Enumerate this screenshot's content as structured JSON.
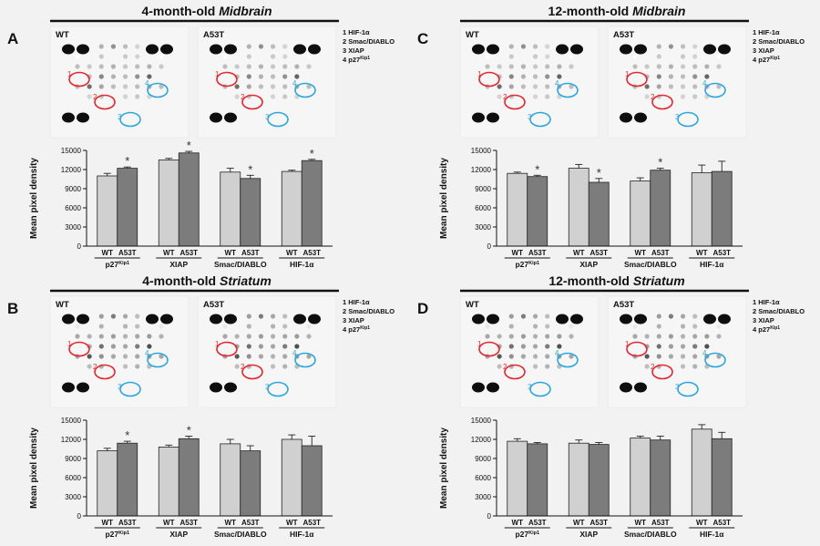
{
  "figure": {
    "ylabel": "Mean pixel density",
    "blot_legend": [
      "1 HIF-1α",
      "2 Smac/DIABLO",
      "3 XIAP",
      "4 p27"
    ],
    "blot_legend_sup": "Kip1",
    "sample_labels": [
      "WT",
      "A53T"
    ],
    "bar_colors": {
      "WT": "#d0d0d0",
      "A53T": "#7c7c7c"
    },
    "circle_colors": {
      "red": "#e0282f",
      "blue": "#2ea6dd"
    }
  },
  "panels": [
    {
      "letter": "A",
      "title_pre": "4-month-old ",
      "title_em": "Midbrain"
    },
    {
      "letter": "C",
      "title_pre": "12-month-old ",
      "title_em": "Midbrain"
    },
    {
      "letter": "B",
      "title_pre": "4-month-old ",
      "title_em": "Striatum"
    },
    {
      "letter": "D",
      "title_pre": "12-month-old ",
      "title_em": "Striatum"
    }
  ],
  "chart_data": [
    {
      "type": "bar",
      "panel": "A",
      "title": "4-month-old Midbrain",
      "ylabel": "Mean pixel density",
      "ylim": [
        0,
        15000
      ],
      "yticks": [
        0,
        3000,
        6000,
        9000,
        12000,
        15000
      ],
      "categories": [
        "p27Kip1",
        "XIAP",
        "Smac/DIABLO",
        "HIF-1α"
      ],
      "groups": [
        {
          "pre": "p27",
          "sup": "Kip1"
        },
        {
          "pre": "XIAP",
          "sup": ""
        },
        {
          "pre": "Smac/DIABLO",
          "sup": ""
        },
        {
          "pre": "HIF-1α",
          "sup": ""
        }
      ],
      "series": [
        {
          "name": "WT",
          "values": [
            11000,
            13500,
            11600,
            11700
          ],
          "errors": [
            400,
            250,
            600,
            200
          ]
        },
        {
          "name": "A53T",
          "values": [
            12200,
            14600,
            10600,
            13400
          ],
          "errors": [
            200,
            250,
            500,
            200
          ]
        }
      ],
      "significance": [
        [
          false,
          true
        ],
        [
          false,
          true
        ],
        [
          false,
          true
        ],
        [
          false,
          true
        ]
      ],
      "sig_symbol": "*"
    },
    {
      "type": "bar",
      "panel": "C",
      "title": "12-month-old Midbrain",
      "ylabel": "Mean pixel density",
      "ylim": [
        0,
        15000
      ],
      "yticks": [
        0,
        3000,
        6000,
        9000,
        12000,
        15000
      ],
      "categories": [
        "p27Kip1",
        "XIAP",
        "Smac/DIABLO",
        "HIF-1α"
      ],
      "groups": [
        {
          "pre": "p27",
          "sup": "Kip1"
        },
        {
          "pre": "XIAP",
          "sup": ""
        },
        {
          "pre": "Smac/DIABLO",
          "sup": ""
        },
        {
          "pre": "HIF-1α",
          "sup": ""
        }
      ],
      "series": [
        {
          "name": "WT",
          "values": [
            11400,
            12200,
            10200,
            11500
          ],
          "errors": [
            200,
            600,
            500,
            1200
          ]
        },
        {
          "name": "A53T",
          "values": [
            10900,
            10000,
            11900,
            11700
          ],
          "errors": [
            200,
            600,
            300,
            1600
          ]
        }
      ],
      "significance": [
        [
          false,
          true
        ],
        [
          false,
          true
        ],
        [
          false,
          true
        ],
        [
          false,
          false
        ]
      ],
      "sig_symbol": "*"
    },
    {
      "type": "bar",
      "panel": "B",
      "title": "4-month-old Striatum",
      "ylabel": "Mean pixel density",
      "ylim": [
        0,
        15000
      ],
      "yticks": [
        0,
        3000,
        6000,
        9000,
        12000,
        15000
      ],
      "categories": [
        "p27Kip1",
        "XIAP",
        "Smac/DIABLO",
        "HIF-1α"
      ],
      "groups": [
        {
          "pre": "p27",
          "sup": "Kip1"
        },
        {
          "pre": "XIAP",
          "sup": ""
        },
        {
          "pre": "Smac/DIABLO",
          "sup": ""
        },
        {
          "pre": "HIF-1α",
          "sup": ""
        }
      ],
      "series": [
        {
          "name": "WT",
          "values": [
            10200,
            10800,
            11300,
            12000
          ],
          "errors": [
            400,
            300,
            700,
            700
          ]
        },
        {
          "name": "A53T",
          "values": [
            11400,
            12100,
            10200,
            11000
          ],
          "errors": [
            300,
            400,
            800,
            1500
          ]
        }
      ],
      "significance": [
        [
          false,
          true
        ],
        [
          false,
          true
        ],
        [
          false,
          false
        ],
        [
          false,
          false
        ]
      ],
      "sig_symbol": "*"
    },
    {
      "type": "bar",
      "panel": "D",
      "title": "12-month-old Striatum",
      "ylabel": "Mean pixel density",
      "ylim": [
        0,
        15000
      ],
      "yticks": [
        0,
        3000,
        6000,
        9000,
        12000,
        15000
      ],
      "categories": [
        "p27Kip1",
        "XIAP",
        "Smac/DIABLO",
        "HIF-1α"
      ],
      "groups": [
        {
          "pre": "p27",
          "sup": "Kip1"
        },
        {
          "pre": "XIAP",
          "sup": ""
        },
        {
          "pre": "Smac/DIABLO",
          "sup": ""
        },
        {
          "pre": "HIF-1α",
          "sup": ""
        }
      ],
      "series": [
        {
          "name": "WT",
          "values": [
            11700,
            11400,
            12200,
            13600
          ],
          "errors": [
            400,
            500,
            300,
            700
          ]
        },
        {
          "name": "A53T",
          "values": [
            11300,
            11200,
            11900,
            12100
          ],
          "errors": [
            200,
            300,
            600,
            1000
          ]
        }
      ],
      "significance": [
        [
          false,
          false
        ],
        [
          false,
          false
        ],
        [
          false,
          false
        ],
        [
          false,
          false
        ]
      ],
      "sig_symbol": "*"
    }
  ]
}
